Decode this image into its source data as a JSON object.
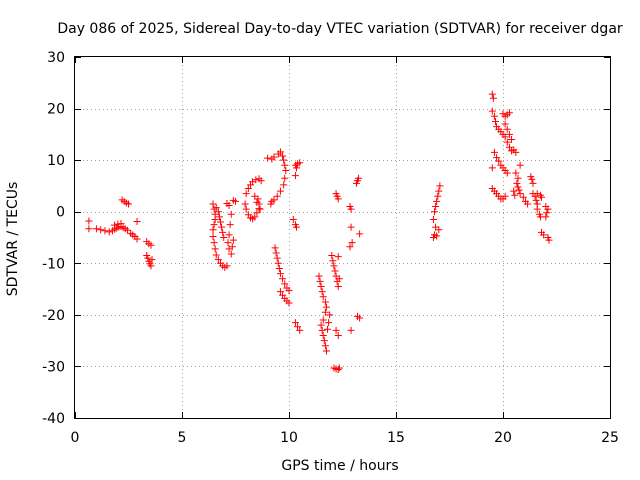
{
  "chart_data": {
    "type": "scatter",
    "title": "Day 086 of 2025, Sidereal Day-to-day VTEC variation (SDTVAR) for receiver dgar",
    "xlabel": "GPS time / hours",
    "ylabel": "SDTVAR / TECUs",
    "xlim": [
      0,
      25
    ],
    "ylim": [
      -40,
      30
    ],
    "xticks": [
      0,
      5,
      10,
      15,
      20,
      25
    ],
    "yticks": [
      -40,
      -30,
      -20,
      -10,
      0,
      10,
      20,
      30
    ],
    "xtick_labels": [
      "0",
      "5",
      "10",
      "15",
      "20",
      "25"
    ],
    "ytick_labels": [
      "-40",
      "-30",
      "-20",
      "-10",
      "0",
      "10",
      "20",
      "30"
    ],
    "grid": true,
    "marker": "plus",
    "color": "#ff0000",
    "series": [
      {
        "name": "SDTVAR",
        "points": [
          [
            0.65,
            -1.8
          ],
          [
            0.65,
            -3.3
          ],
          [
            1.0,
            -3.3
          ],
          [
            1.2,
            -3.5
          ],
          [
            1.4,
            -3.7
          ],
          [
            1.6,
            -3.9
          ],
          [
            1.75,
            -3.7
          ],
          [
            1.85,
            -3.4
          ],
          [
            1.95,
            -3.2
          ],
          [
            2.05,
            -3.0
          ],
          [
            2.15,
            -2.9
          ],
          [
            2.25,
            -3.1
          ],
          [
            2.35,
            -3.3
          ],
          [
            2.45,
            -3.6
          ],
          [
            1.85,
            -2.6
          ],
          [
            2.0,
            -2.4
          ],
          [
            2.15,
            -2.3
          ],
          [
            2.2,
            2.3
          ],
          [
            2.3,
            2.0
          ],
          [
            2.4,
            1.7
          ],
          [
            2.5,
            1.5
          ],
          [
            2.6,
            -4.2
          ],
          [
            2.7,
            -4.5
          ],
          [
            2.8,
            -4.8
          ],
          [
            2.9,
            -5.3
          ],
          [
            2.9,
            -1.9
          ],
          [
            3.35,
            -5.8
          ],
          [
            3.45,
            -6.2
          ],
          [
            3.55,
            -6.5
          ],
          [
            3.35,
            -8.5
          ],
          [
            3.4,
            -9.0
          ],
          [
            3.45,
            -9.6
          ],
          [
            3.5,
            -10.1
          ],
          [
            3.55,
            -10.5
          ],
          [
            3.6,
            -9.3
          ],
          [
            6.45,
            1.5
          ],
          [
            6.5,
            0.5
          ],
          [
            6.55,
            -0.5
          ],
          [
            6.55,
            -1.5
          ],
          [
            6.5,
            -2.5
          ],
          [
            6.45,
            -3.5
          ],
          [
            6.45,
            -4.8
          ],
          [
            6.5,
            -6.0
          ],
          [
            6.55,
            -7.2
          ],
          [
            6.6,
            -8.4
          ],
          [
            6.7,
            -9.3
          ],
          [
            6.8,
            -10.0
          ],
          [
            6.9,
            -10.5
          ],
          [
            7.0,
            -10.8
          ],
          [
            7.1,
            -10.5
          ],
          [
            6.6,
            0.8
          ],
          [
            6.7,
            0.0
          ],
          [
            6.75,
            -1.0
          ],
          [
            6.8,
            -2.0
          ],
          [
            6.85,
            -3.0
          ],
          [
            6.9,
            -4.0
          ],
          [
            6.95,
            -5.0
          ],
          [
            7.1,
            1.6
          ],
          [
            7.2,
            1.2
          ],
          [
            7.3,
            -0.5
          ],
          [
            7.25,
            -2.5
          ],
          [
            7.2,
            -4.5
          ],
          [
            7.15,
            -6.0
          ],
          [
            7.2,
            -7.2
          ],
          [
            7.3,
            -8.2
          ],
          [
            7.35,
            -6.8
          ],
          [
            7.4,
            -5.5
          ],
          [
            7.4,
            2.2
          ],
          [
            7.5,
            2.0
          ],
          [
            7.95,
            1.5
          ],
          [
            8.0,
            0.5
          ],
          [
            8.1,
            -0.6
          ],
          [
            8.2,
            -1.2
          ],
          [
            8.3,
            -1.4
          ],
          [
            8.4,
            -1.0
          ],
          [
            8.5,
            -0.2
          ],
          [
            8.6,
            0.6
          ],
          [
            8.0,
            3.5
          ],
          [
            8.1,
            4.5
          ],
          [
            8.2,
            5.2
          ],
          [
            8.3,
            5.8
          ],
          [
            8.45,
            6.2
          ],
          [
            8.6,
            6.4
          ],
          [
            8.7,
            6.0
          ],
          [
            8.55,
            2.5
          ],
          [
            8.6,
            1.5
          ],
          [
            8.65,
            0.5
          ],
          [
            8.5,
            1.8
          ],
          [
            8.4,
            3.0
          ],
          [
            9.0,
            10.4
          ],
          [
            9.2,
            10.2
          ],
          [
            9.3,
            10.6
          ],
          [
            9.5,
            11.2
          ],
          [
            9.6,
            11.6
          ],
          [
            9.7,
            10.8
          ],
          [
            9.75,
            10.0
          ],
          [
            9.8,
            9.0
          ],
          [
            9.85,
            8.0
          ],
          [
            9.8,
            6.5
          ],
          [
            9.75,
            5.2
          ],
          [
            9.6,
            4.0
          ],
          [
            9.45,
            3.0
          ],
          [
            9.3,
            2.3
          ],
          [
            9.2,
            2.0
          ],
          [
            9.15,
            1.5
          ],
          [
            9.35,
            -7.0
          ],
          [
            9.4,
            -8.0
          ],
          [
            9.45,
            -9.0
          ],
          [
            9.5,
            -10.0
          ],
          [
            9.55,
            -11.0
          ],
          [
            9.6,
            -12.0
          ],
          [
            9.7,
            -13.0
          ],
          [
            9.8,
            -14.0
          ],
          [
            9.9,
            -14.8
          ],
          [
            10.0,
            -15.3
          ],
          [
            9.6,
            -15.5
          ],
          [
            9.7,
            -16.2
          ],
          [
            9.8,
            -16.8
          ],
          [
            9.9,
            -17.3
          ],
          [
            10.0,
            -17.7
          ],
          [
            10.2,
            -1.5
          ],
          [
            10.3,
            -2.5
          ],
          [
            10.35,
            -3.0
          ],
          [
            10.3,
            7.0
          ],
          [
            10.35,
            8.5
          ],
          [
            10.4,
            9.3
          ],
          [
            10.3,
            9.0
          ],
          [
            10.5,
            9.5
          ],
          [
            10.3,
            -21.5
          ],
          [
            10.4,
            -22.3
          ],
          [
            10.5,
            -23.0
          ],
          [
            11.4,
            -12.5
          ],
          [
            11.45,
            -13.5
          ],
          [
            11.5,
            -14.5
          ],
          [
            11.55,
            -15.5
          ],
          [
            11.6,
            -16.5
          ],
          [
            11.7,
            -17.5
          ],
          [
            11.75,
            -18.5
          ],
          [
            11.7,
            -19.5
          ],
          [
            11.6,
            -21.0
          ],
          [
            11.5,
            -22.0
          ],
          [
            11.55,
            -23.0
          ],
          [
            11.6,
            -24.0
          ],
          [
            11.65,
            -25.0
          ],
          [
            11.7,
            -26.0
          ],
          [
            11.75,
            -27.0
          ],
          [
            11.8,
            -22.8
          ],
          [
            11.85,
            -21.5
          ],
          [
            11.9,
            -20.0
          ],
          [
            12.0,
            -8.5
          ],
          [
            12.05,
            -9.5
          ],
          [
            12.1,
            -10.5
          ],
          [
            12.15,
            -11.5
          ],
          [
            12.2,
            -12.5
          ],
          [
            12.25,
            -13.5
          ],
          [
            12.3,
            -14.5
          ],
          [
            12.35,
            -13.0
          ],
          [
            12.1,
            -30.3
          ],
          [
            12.2,
            -30.5
          ],
          [
            12.3,
            -30.6
          ],
          [
            12.35,
            -30.3
          ],
          [
            12.2,
            3.5
          ],
          [
            12.25,
            3.0
          ],
          [
            12.3,
            2.5
          ],
          [
            12.3,
            -8.7
          ],
          [
            12.2,
            -23.0
          ],
          [
            12.3,
            -24.0
          ],
          [
            12.85,
            1.0
          ],
          [
            12.9,
            0.5
          ],
          [
            12.9,
            -3.0
          ],
          [
            12.95,
            -6.0
          ],
          [
            12.85,
            -6.8
          ],
          [
            12.9,
            -23.0
          ],
          [
            13.2,
            -20.3
          ],
          [
            13.3,
            -20.6
          ],
          [
            13.15,
            5.5
          ],
          [
            13.2,
            6.0
          ],
          [
            13.25,
            6.5
          ],
          [
            13.3,
            -4.3
          ],
          [
            16.75,
            -5.0
          ],
          [
            16.8,
            -4.5
          ],
          [
            16.85,
            -3.0
          ],
          [
            16.75,
            -1.5
          ],
          [
            16.8,
            0.0
          ],
          [
            16.85,
            1.0
          ],
          [
            16.9,
            2.0
          ],
          [
            16.95,
            3.0
          ],
          [
            17.0,
            4.0
          ],
          [
            17.05,
            5.0
          ],
          [
            17.0,
            -3.5
          ],
          [
            16.9,
            -4.7
          ],
          [
            19.5,
            22.8
          ],
          [
            19.55,
            22.0
          ],
          [
            19.5,
            19.5
          ],
          [
            19.6,
            18.5
          ],
          [
            19.65,
            17.5
          ],
          [
            19.7,
            16.5
          ],
          [
            19.8,
            16.0
          ],
          [
            19.9,
            15.5
          ],
          [
            20.0,
            15.0
          ],
          [
            20.1,
            14.5
          ],
          [
            20.2,
            13.5
          ],
          [
            20.3,
            12.5
          ],
          [
            20.4,
            11.8
          ],
          [
            19.6,
            11.5
          ],
          [
            19.7,
            10.5
          ],
          [
            19.8,
            9.8
          ],
          [
            19.9,
            9.0
          ],
          [
            20.0,
            8.5
          ],
          [
            20.1,
            8.0
          ],
          [
            20.2,
            7.5
          ],
          [
            19.5,
            8.5
          ],
          [
            19.5,
            4.5
          ],
          [
            19.6,
            4.0
          ],
          [
            19.7,
            3.5
          ],
          [
            19.8,
            3.0
          ],
          [
            19.9,
            2.5
          ],
          [
            20.0,
            2.5
          ],
          [
            20.1,
            3.0
          ],
          [
            20.0,
            19.0
          ],
          [
            20.1,
            18.5
          ],
          [
            20.2,
            18.8
          ],
          [
            20.3,
            19.2
          ],
          [
            20.1,
            17.0
          ],
          [
            20.2,
            16.0
          ],
          [
            20.3,
            15.0
          ],
          [
            20.4,
            14.0
          ],
          [
            20.5,
            12.0
          ],
          [
            20.6,
            11.5
          ],
          [
            20.6,
            7.5
          ],
          [
            20.7,
            6.5
          ],
          [
            20.65,
            5.5
          ],
          [
            20.7,
            4.8
          ],
          [
            20.75,
            4.2
          ],
          [
            20.8,
            3.5
          ],
          [
            20.5,
            4.0
          ],
          [
            20.55,
            3.2
          ],
          [
            20.8,
            9.0
          ],
          [
            20.95,
            2.8
          ],
          [
            21.05,
            2.0
          ],
          [
            21.15,
            1.5
          ],
          [
            21.3,
            6.8
          ],
          [
            21.35,
            6.3
          ],
          [
            21.4,
            5.5
          ],
          [
            21.4,
            3.5
          ],
          [
            21.5,
            3.0
          ],
          [
            21.55,
            2.2
          ],
          [
            21.6,
            1.5
          ],
          [
            21.6,
            0.5
          ],
          [
            21.7,
            -0.5
          ],
          [
            21.75,
            -1.0
          ],
          [
            21.6,
            3.5
          ],
          [
            21.75,
            3.2
          ],
          [
            21.8,
            2.8
          ],
          [
            21.8,
            -4.0
          ],
          [
            21.9,
            -4.5
          ],
          [
            22.0,
            -1.0
          ],
          [
            22.0,
            1.0
          ],
          [
            22.1,
            0.5
          ],
          [
            22.1,
            -5.0
          ],
          [
            22.15,
            -5.5
          ],
          [
            22.05,
            -0.2
          ]
        ]
      }
    ]
  }
}
